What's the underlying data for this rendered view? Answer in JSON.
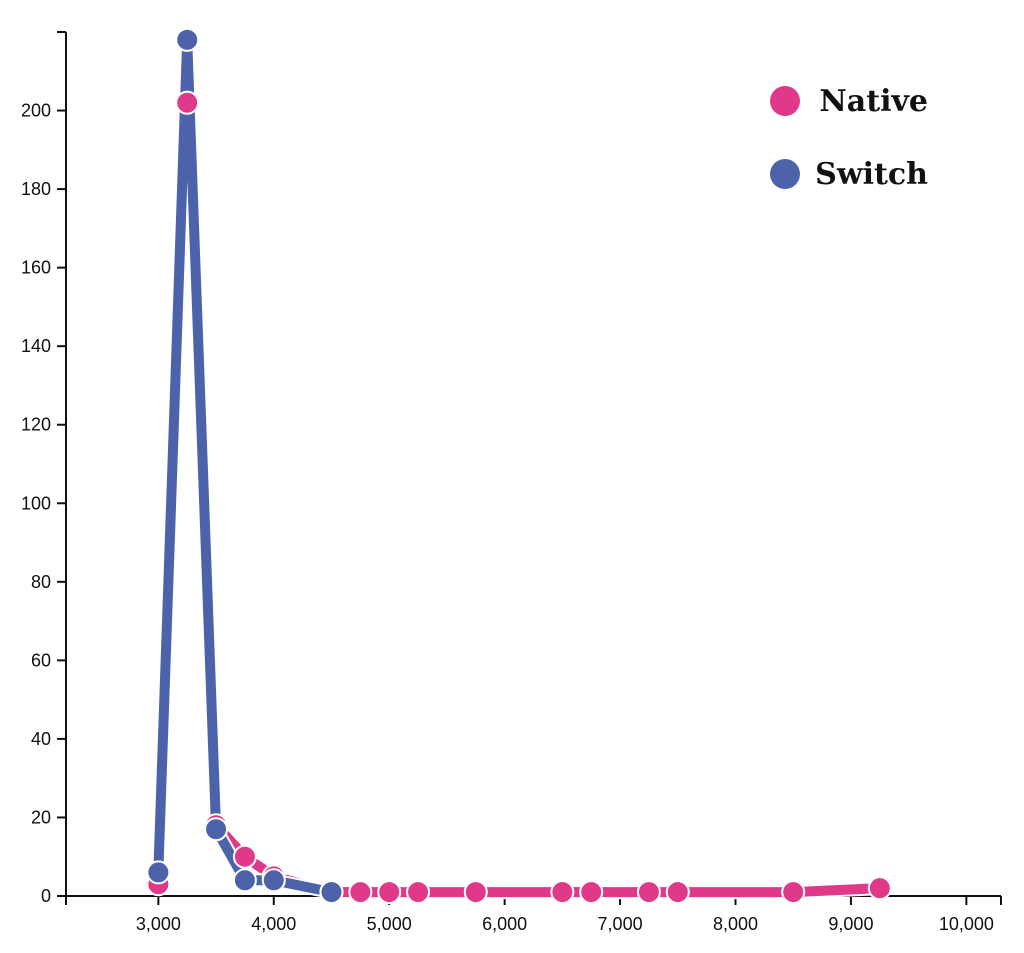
{
  "chart_data": {
    "type": "line",
    "title": "",
    "xlabel": "",
    "ylabel": "",
    "xlim": [
      2200,
      10300
    ],
    "ylim": [
      0,
      220
    ],
    "x_ticks": [
      3000,
      4000,
      5000,
      6000,
      7000,
      8000,
      9000,
      10000
    ],
    "x_tick_labels": [
      "3,000",
      "4,000",
      "5,000",
      "6,000",
      "7,000",
      "8,000",
      "9,000",
      "10,000"
    ],
    "y_ticks": [
      0,
      20,
      40,
      60,
      80,
      100,
      120,
      140,
      160,
      180,
      200
    ],
    "y_tick_labels": [
      "0",
      "20",
      "40",
      "60",
      "80",
      "100",
      "120",
      "140",
      "160",
      "180",
      "200"
    ],
    "grid": false,
    "legend_position": "top-right",
    "series": [
      {
        "name": "Native",
        "color": "#e0398a",
        "x": [
          3000,
          3250,
          3500,
          3750,
          4000,
          4500,
          4750,
          5000,
          5250,
          5750,
          6500,
          6750,
          7250,
          7500,
          8500,
          9250
        ],
        "y": [
          3,
          202,
          18,
          10,
          5,
          1,
          1,
          1,
          1,
          1,
          1,
          1,
          1,
          1,
          1,
          2
        ]
      },
      {
        "name": "Switch",
        "color": "#4c62ab",
        "x": [
          3000,
          3250,
          3500,
          3750,
          4000,
          4500
        ],
        "y": [
          6,
          218,
          17,
          4,
          4,
          1
        ]
      }
    ]
  }
}
